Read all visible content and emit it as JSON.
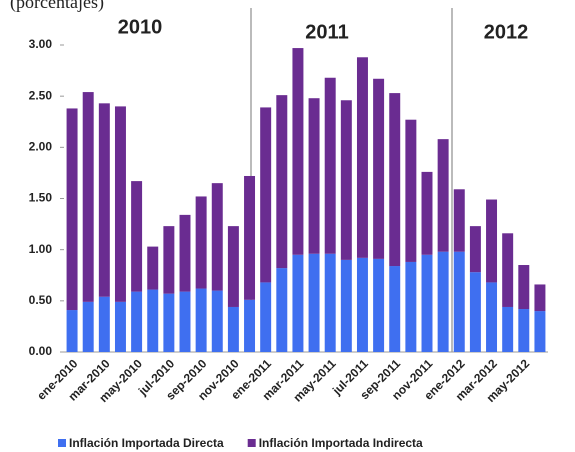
{
  "chart_data": {
    "type": "stacked_bar",
    "subtitle": "(porcentajes)",
    "annotations": [
      "2010",
      "2011",
      "2012"
    ],
    "categories": [
      "ene-2010",
      null,
      "mar-2010",
      null,
      "may-2010",
      null,
      "jul-2010",
      null,
      "sep-2010",
      null,
      "nov-2010",
      null,
      "ene-2011",
      null,
      "mar-2011",
      null,
      "may-2011",
      null,
      "jul-2011",
      null,
      "sep-2011",
      null,
      "nov-2011",
      null,
      "ene-2012",
      null,
      "mar-2012",
      null,
      "may-2012",
      null
    ],
    "series": [
      {
        "name": "Inflación Importada Directa",
        "color": "#3f6ff0",
        "values": [
          0.41,
          0.49,
          0.54,
          0.49,
          0.59,
          0.61,
          0.57,
          0.59,
          0.62,
          0.6,
          0.44,
          0.51,
          0.68,
          0.82,
          0.95,
          0.96,
          0.96,
          0.9,
          0.92,
          0.91,
          0.84,
          0.88,
          0.95,
          0.98,
          0.98,
          0.78,
          0.68,
          0.44,
          0.42,
          0.4
        ]
      },
      {
        "name": "Inflación Importada Indirecta",
        "color": "#6a2c91",
        "values": [
          1.97,
          2.05,
          1.89,
          1.91,
          1.08,
          0.42,
          0.66,
          0.75,
          0.9,
          1.05,
          0.79,
          1.21,
          1.71,
          1.69,
          2.02,
          1.52,
          1.72,
          1.56,
          1.96,
          1.76,
          1.69,
          1.39,
          0.81,
          1.1,
          0.61,
          0.45,
          0.81,
          0.72,
          0.43,
          0.26
        ]
      }
    ],
    "ylim": [
      0,
      3
    ],
    "yticks": [
      {
        "value": 0,
        "label": "0.00"
      },
      {
        "value": 0.5,
        "label": "0.50"
      },
      {
        "value": 1,
        "label": "1.00"
      },
      {
        "value": 1.5,
        "label": "1.50"
      },
      {
        "value": 2,
        "label": "2.00"
      },
      {
        "value": 2.5,
        "label": "2.50"
      },
      {
        "value": 3,
        "label": "3.00"
      }
    ]
  }
}
